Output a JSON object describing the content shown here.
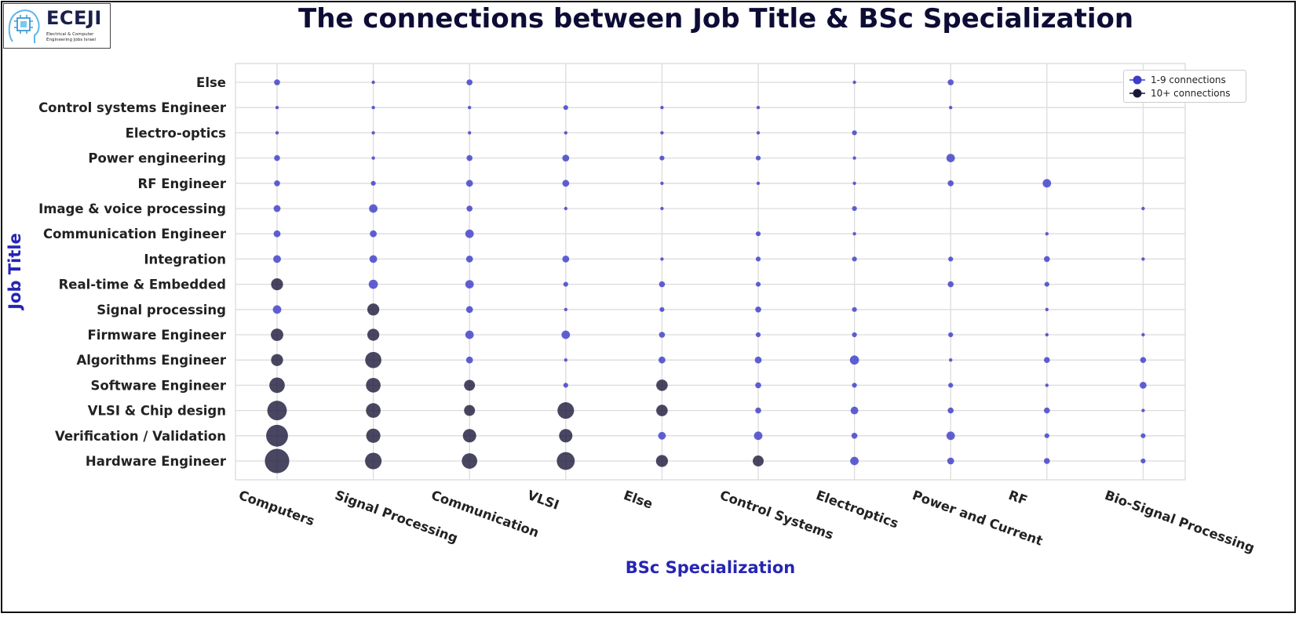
{
  "logo": {
    "name": "ECEJI",
    "subtitle": "Electrical & Computer Engineering Jobs Israel"
  },
  "colors": {
    "low": "#3d3dc9",
    "high": "#1a1838",
    "grid": "#dcdcdc",
    "axis_label": "#2525b5",
    "title": "#0c0c35"
  },
  "chart_data": {
    "type": "scatter",
    "title": "The connections between Job Title & BSc Specialization",
    "xlabel": "BSc Specialization",
    "ylabel": "Job Title",
    "x_categories": [
      "Computers",
      "Signal Processing",
      "Communication",
      "VLSI",
      "Else",
      "Control Systems",
      "Electroptics",
      "Power and Current",
      "RF",
      "Bio-Signal Processing"
    ],
    "y_categories": [
      "Hardware Engineer",
      "Verification / Validation",
      "VLSI & Chip design",
      "Software Engineer",
      "Algorithms Engineer",
      "Firmware Engineer",
      "Signal processing",
      "Real-time & Embedded",
      "Integration",
      "Communication Engineer",
      "Image & voice processing",
      "RF Engineer",
      "Power engineering",
      "Electro-optics",
      "Control systems Engineer",
      "Else"
    ],
    "legend": {
      "position": "top-right",
      "entries": [
        "1-9 connections",
        "10+ connections"
      ]
    },
    "threshold": 10,
    "grid": true,
    "points": [
      [
        0,
        0,
        50
      ],
      [
        1,
        0,
        23
      ],
      [
        2,
        0,
        20
      ],
      [
        3,
        0,
        27
      ],
      [
        4,
        0,
        12
      ],
      [
        5,
        0,
        10
      ],
      [
        6,
        0,
        6
      ],
      [
        7,
        0,
        4
      ],
      [
        8,
        0,
        3
      ],
      [
        9,
        0,
        2
      ],
      [
        0,
        1,
        40
      ],
      [
        1,
        1,
        17
      ],
      [
        2,
        1,
        15
      ],
      [
        3,
        1,
        15
      ],
      [
        4,
        1,
        5
      ],
      [
        5,
        1,
        6
      ],
      [
        6,
        1,
        3
      ],
      [
        7,
        1,
        6
      ],
      [
        8,
        1,
        2
      ],
      [
        9,
        1,
        2
      ],
      [
        0,
        2,
        32
      ],
      [
        1,
        2,
        18
      ],
      [
        2,
        2,
        10
      ],
      [
        3,
        2,
        23
      ],
      [
        4,
        2,
        11
      ],
      [
        5,
        2,
        3
      ],
      [
        6,
        2,
        5
      ],
      [
        7,
        2,
        3
      ],
      [
        8,
        2,
        3
      ],
      [
        9,
        2,
        1
      ],
      [
        0,
        3,
        20
      ],
      [
        1,
        3,
        18
      ],
      [
        2,
        3,
        10
      ],
      [
        3,
        3,
        2
      ],
      [
        4,
        3,
        11
      ],
      [
        5,
        3,
        3
      ],
      [
        6,
        3,
        2
      ],
      [
        7,
        3,
        2
      ],
      [
        8,
        3,
        1
      ],
      [
        9,
        3,
        4
      ],
      [
        0,
        4,
        12
      ],
      [
        1,
        4,
        22
      ],
      [
        2,
        4,
        4
      ],
      [
        3,
        4,
        1
      ],
      [
        4,
        4,
        4
      ],
      [
        5,
        4,
        4
      ],
      [
        6,
        4,
        7
      ],
      [
        7,
        4,
        1
      ],
      [
        8,
        4,
        3
      ],
      [
        9,
        4,
        3
      ],
      [
        0,
        5,
        13
      ],
      [
        1,
        5,
        12
      ],
      [
        2,
        5,
        6
      ],
      [
        3,
        5,
        6
      ],
      [
        4,
        5,
        3
      ],
      [
        5,
        5,
        2
      ],
      [
        6,
        5,
        2
      ],
      [
        7,
        5,
        2
      ],
      [
        8,
        5,
        1
      ],
      [
        9,
        5,
        1
      ],
      [
        0,
        6,
        6
      ],
      [
        1,
        6,
        12
      ],
      [
        2,
        6,
        4
      ],
      [
        3,
        6,
        1
      ],
      [
        4,
        6,
        2
      ],
      [
        5,
        6,
        3
      ],
      [
        6,
        6,
        2
      ],
      [
        8,
        6,
        1
      ],
      [
        0,
        7,
        12
      ],
      [
        1,
        7,
        7
      ],
      [
        2,
        7,
        6
      ],
      [
        3,
        7,
        2
      ],
      [
        4,
        7,
        3
      ],
      [
        5,
        7,
        2
      ],
      [
        7,
        7,
        3
      ],
      [
        8,
        7,
        2
      ],
      [
        0,
        8,
        5
      ],
      [
        1,
        8,
        5
      ],
      [
        2,
        8,
        4
      ],
      [
        3,
        8,
        4
      ],
      [
        4,
        8,
        1
      ],
      [
        5,
        8,
        2
      ],
      [
        6,
        8,
        2
      ],
      [
        7,
        8,
        2
      ],
      [
        8,
        8,
        3
      ],
      [
        9,
        8,
        1
      ],
      [
        0,
        9,
        4
      ],
      [
        1,
        9,
        4
      ],
      [
        2,
        9,
        6
      ],
      [
        5,
        9,
        2
      ],
      [
        6,
        9,
        1
      ],
      [
        8,
        9,
        1
      ],
      [
        0,
        10,
        4
      ],
      [
        1,
        10,
        6
      ],
      [
        2,
        10,
        3
      ],
      [
        3,
        10,
        1
      ],
      [
        4,
        10,
        1
      ],
      [
        6,
        10,
        2
      ],
      [
        9,
        10,
        1
      ],
      [
        0,
        11,
        3
      ],
      [
        1,
        11,
        2
      ],
      [
        2,
        11,
        4
      ],
      [
        3,
        11,
        4
      ],
      [
        4,
        11,
        1
      ],
      [
        5,
        11,
        1
      ],
      [
        6,
        11,
        1
      ],
      [
        7,
        11,
        3
      ],
      [
        8,
        11,
        6
      ],
      [
        0,
        12,
        3
      ],
      [
        1,
        12,
        1
      ],
      [
        2,
        12,
        3
      ],
      [
        3,
        12,
        4
      ],
      [
        4,
        12,
        2
      ],
      [
        5,
        12,
        2
      ],
      [
        6,
        12,
        1
      ],
      [
        7,
        12,
        6
      ],
      [
        0,
        13,
        1
      ],
      [
        1,
        13,
        1
      ],
      [
        2,
        13,
        1
      ],
      [
        3,
        13,
        1
      ],
      [
        4,
        13,
        1
      ],
      [
        5,
        13,
        1
      ],
      [
        6,
        13,
        2
      ],
      [
        0,
        14,
        1
      ],
      [
        1,
        14,
        1
      ],
      [
        2,
        14,
        1
      ],
      [
        3,
        14,
        2
      ],
      [
        4,
        14,
        1
      ],
      [
        5,
        14,
        1
      ],
      [
        7,
        14,
        1
      ],
      [
        0,
        15,
        3
      ],
      [
        1,
        15,
        1
      ],
      [
        2,
        15,
        3
      ],
      [
        6,
        15,
        1
      ],
      [
        7,
        15,
        3
      ]
    ]
  }
}
